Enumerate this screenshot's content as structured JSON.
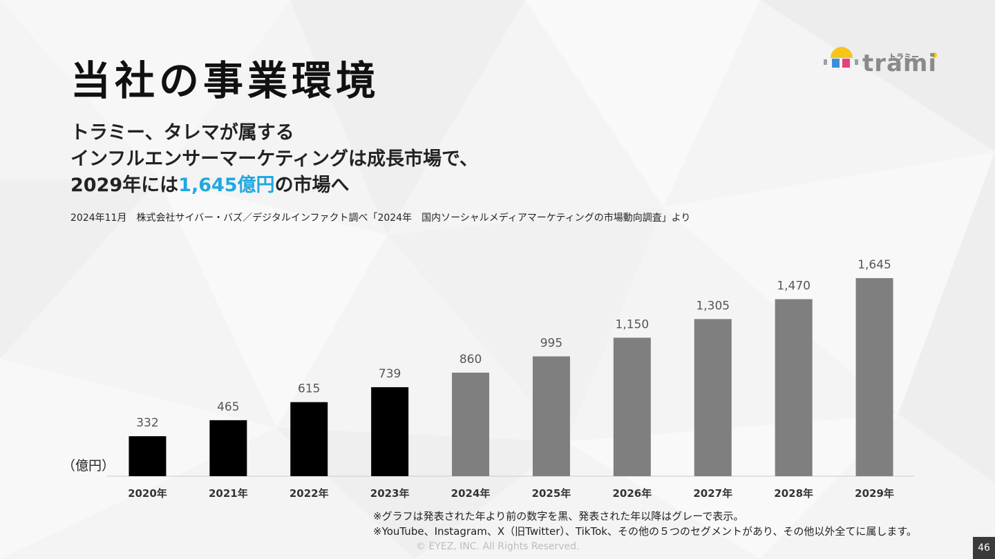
{
  "title": "当社の事業環境",
  "logo": {
    "text": "trami",
    "kana": "トラミー"
  },
  "headline": {
    "line1": "トラミー、タレマが属する",
    "line2": "インフルエンサーマーケティングは成長市場で、",
    "line3_prefix": "2029年には",
    "line3_accent": "1,645億円",
    "line3_suffix": "の市場へ"
  },
  "source": "2024年11月　株式会社サイバー・バズ／デジタルインファクト調べ「2024年　国内ソーシャルメディアマーケティングの市場動向調査」より",
  "unit_label": "（億円）",
  "notes": [
    "※グラフは発表された年より前の数字を黒、発表された年以降はグレーで表示。",
    "※YouTube、Instagram、X（旧Twitter）、TikTok、その他の５つのセグメントがあり、その他以外全てに属します。"
  ],
  "copyright": "© EYEZ, INC. All Rights Reserved.",
  "page_number": "46",
  "colors": {
    "actual": "#000000",
    "forecast": "#7f7f7f",
    "accent": "#1fa8e0"
  },
  "chart_data": {
    "type": "bar",
    "categories": [
      "2020年",
      "2021年",
      "2022年",
      "2023年",
      "2024年",
      "2025年",
      "2026年",
      "2027年",
      "2028年",
      "2029年"
    ],
    "values": [
      332,
      465,
      615,
      739,
      860,
      995,
      1150,
      1305,
      1470,
      1645
    ],
    "value_labels": [
      "332",
      "465",
      "615",
      "739",
      "860",
      "995",
      "1,150",
      "1,305",
      "1,470",
      "1,645"
    ],
    "bar_kind": [
      "actual",
      "actual",
      "actual",
      "actual",
      "forecast",
      "forecast",
      "forecast",
      "forecast",
      "forecast",
      "forecast"
    ],
    "ylabel": "（億円）",
    "ylim": [
      0,
      1645
    ],
    "grid": false
  }
}
